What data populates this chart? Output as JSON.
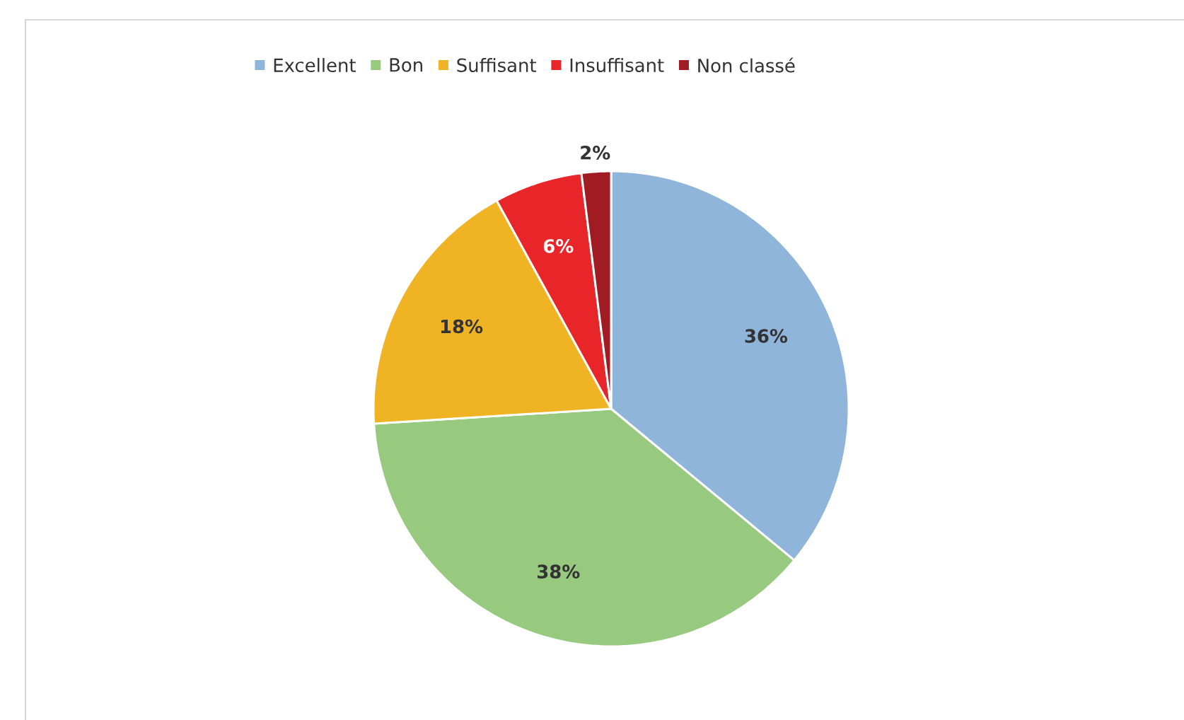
{
  "chart_data": {
    "type": "pie",
    "categories": [
      "Excellent",
      "Bon",
      "Suffisant",
      "Insuffisant",
      "Non classé"
    ],
    "values": [
      36,
      38,
      18,
      6,
      2
    ],
    "value_labels": [
      "36%",
      "38%",
      "18%",
      "6%",
      "2%"
    ],
    "colors": [
      "#8fb5da",
      "#97c97f",
      "#f0b323",
      "#e8262a",
      "#a01c22"
    ],
    "legend": "top"
  }
}
